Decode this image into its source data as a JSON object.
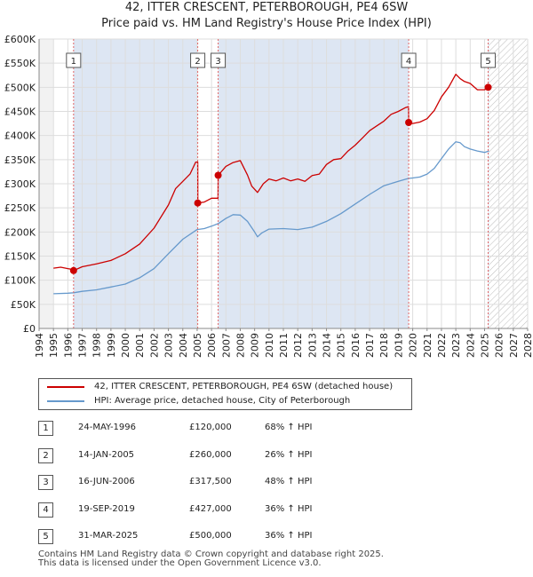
{
  "title_line1": "42, ITTER CRESCENT, PETERBOROUGH, PE4 6SW",
  "title_line2": "Price paid vs. HM Land Registry's House Price Index (HPI)",
  "legend": {
    "property": "42, ITTER CRESCENT, PETERBOROUGH, PE4 6SW (detached house)",
    "hpi": "HPI: Average price, detached house, City of Peterborough"
  },
  "colors": {
    "property": "#cc0000",
    "hpi": "#6699cc",
    "shade": "#dde6f3",
    "marker_line": "#e06666"
  },
  "sales": [
    {
      "n": "1",
      "date": "24-MAY-1996",
      "price": "£120,000",
      "hpi": "68% ↑ HPI"
    },
    {
      "n": "2",
      "date": "14-JAN-2005",
      "price": "£260,000",
      "hpi": "26% ↑ HPI"
    },
    {
      "n": "3",
      "date": "16-JUN-2006",
      "price": "£317,500",
      "hpi": "48% ↑ HPI"
    },
    {
      "n": "4",
      "date": "19-SEP-2019",
      "price": "£427,000",
      "hpi": "36% ↑ HPI"
    },
    {
      "n": "5",
      "date": "31-MAR-2025",
      "price": "£500,000",
      "hpi": "36% ↑ HPI"
    }
  ],
  "footer": {
    "line1": "Contains HM Land Registry data © Crown copyright and database right 2025.",
    "line2": "This data is licensed under the Open Government Licence v3.0."
  },
  "chart_data": {
    "type": "line",
    "title": "Price paid vs. HM Land Registry's House Price Index (HPI)",
    "xlim": [
      1994,
      2028
    ],
    "ylim": [
      0,
      600000
    ],
    "x_ticks": [
      "1994",
      "1995",
      "1996",
      "1997",
      "1998",
      "1999",
      "2000",
      "2001",
      "2002",
      "2003",
      "2004",
      "2005",
      "2006",
      "2007",
      "2008",
      "2009",
      "2010",
      "2011",
      "2012",
      "2013",
      "2014",
      "2015",
      "2016",
      "2017",
      "2018",
      "2019",
      "2020",
      "2021",
      "2022",
      "2023",
      "2024",
      "2025",
      "2026",
      "2027",
      "2028"
    ],
    "y_ticks": [
      {
        "value": 0,
        "label": "£0"
      },
      {
        "value": 50000,
        "label": "£50K"
      },
      {
        "value": 100000,
        "label": "£100K"
      },
      {
        "value": 150000,
        "label": "£150K"
      },
      {
        "value": 200000,
        "label": "£200K"
      },
      {
        "value": 250000,
        "label": "£250K"
      },
      {
        "value": 300000,
        "label": "£300K"
      },
      {
        "value": 350000,
        "label": "£350K"
      },
      {
        "value": 400000,
        "label": "£400K"
      },
      {
        "value": 450000,
        "label": "£450K"
      },
      {
        "value": 500000,
        "label": "£500K"
      },
      {
        "value": 550000,
        "label": "£550K"
      },
      {
        "value": 600000,
        "label": "£600K"
      }
    ],
    "data_start": 1995,
    "data_end": 2025.3,
    "hatch_start": 2025.3,
    "shaded_bands": [
      [
        1996.4,
        2005.04
      ],
      [
        2006.46,
        2019.72
      ],
      [
        2025.25,
        2025.3
      ]
    ],
    "series": [
      {
        "name": "42, ITTER CRESCENT, PETERBOROUGH, PE4 6SW (detached house)",
        "x": [
          1995.0,
          1995.5,
          1996.0,
          1996.39,
          1996.4,
          1997.0,
          1998.0,
          1999.0,
          2000.0,
          2001.0,
          2002.0,
          2003.0,
          2003.5,
          2004.0,
          2004.5,
          2004.9,
          2005.04,
          2005.05,
          2005.5,
          2006.0,
          2006.45,
          2006.46,
          2007.0,
          2007.5,
          2008.0,
          2008.5,
          2008.8,
          2009.2,
          2009.6,
          2010.0,
          2010.5,
          2011.0,
          2011.5,
          2012.0,
          2012.5,
          2013.0,
          2013.5,
          2014.0,
          2014.5,
          2015.0,
          2015.5,
          2016.0,
          2016.5,
          2017.0,
          2017.5,
          2018.0,
          2018.5,
          2019.0,
          2019.5,
          2019.71,
          2019.72,
          2020.0,
          2020.5,
          2021.0,
          2021.5,
          2022.0,
          2022.5,
          2023.0,
          2023.3,
          2023.6,
          2024.0,
          2024.5,
          2025.0,
          2025.3
        ],
        "values": [
          125000,
          127000,
          124000,
          122000,
          120000,
          128000,
          134000,
          141000,
          155000,
          175000,
          208000,
          256000,
          290000,
          305000,
          320000,
          345000,
          345000,
          260000,
          262000,
          270000,
          270000,
          317500,
          336000,
          344000,
          348000,
          318000,
          295000,
          282000,
          300000,
          310000,
          306000,
          312000,
          306000,
          310000,
          305000,
          317000,
          320000,
          340000,
          350000,
          352000,
          368000,
          380000,
          395000,
          410000,
          420000,
          430000,
          444000,
          450000,
          458000,
          460000,
          427000,
          425000,
          428000,
          435000,
          452000,
          480000,
          500000,
          527000,
          518000,
          512000,
          508000,
          495000,
          495000,
          500000
        ]
      },
      {
        "name": "HPI: Average price, detached house, City of Peterborough",
        "x": [
          1995.0,
          1996.0,
          1996.4,
          1997.0,
          1998.0,
          1999.0,
          2000.0,
          2001.0,
          2002.0,
          2003.0,
          2004.0,
          2005.0,
          2005.5,
          2006.0,
          2006.5,
          2007.0,
          2007.5,
          2008.0,
          2008.5,
          2009.0,
          2009.2,
          2009.5,
          2010.0,
          2011.0,
          2012.0,
          2013.0,
          2014.0,
          2015.0,
          2016.0,
          2017.0,
          2018.0,
          2019.0,
          2019.7,
          2020.0,
          2020.5,
          2021.0,
          2021.5,
          2022.0,
          2022.5,
          2023.0,
          2023.3,
          2023.6,
          2024.0,
          2024.5,
          2025.0,
          2025.3
        ],
        "values": [
          72000,
          73000,
          74000,
          77000,
          80000,
          86000,
          92000,
          105000,
          124000,
          155000,
          185000,
          205000,
          207000,
          212000,
          218000,
          228000,
          236000,
          235000,
          222000,
          200000,
          190000,
          198000,
          206000,
          207000,
          205000,
          210000,
          222000,
          238000,
          258000,
          278000,
          296000,
          305000,
          311000,
          312000,
          314000,
          320000,
          332000,
          352000,
          372000,
          387000,
          385000,
          377000,
          372000,
          368000,
          365000,
          368000
        ]
      }
    ],
    "sale_markers": [
      {
        "label": "1",
        "x": 1996.4,
        "y": 120000
      },
      {
        "label": "2",
        "x": 2005.04,
        "y": 260000
      },
      {
        "label": "3",
        "x": 2006.46,
        "y": 317500
      },
      {
        "label": "4",
        "x": 2019.72,
        "y": 427000
      },
      {
        "label": "5",
        "x": 2025.25,
        "y": 500000
      }
    ]
  }
}
